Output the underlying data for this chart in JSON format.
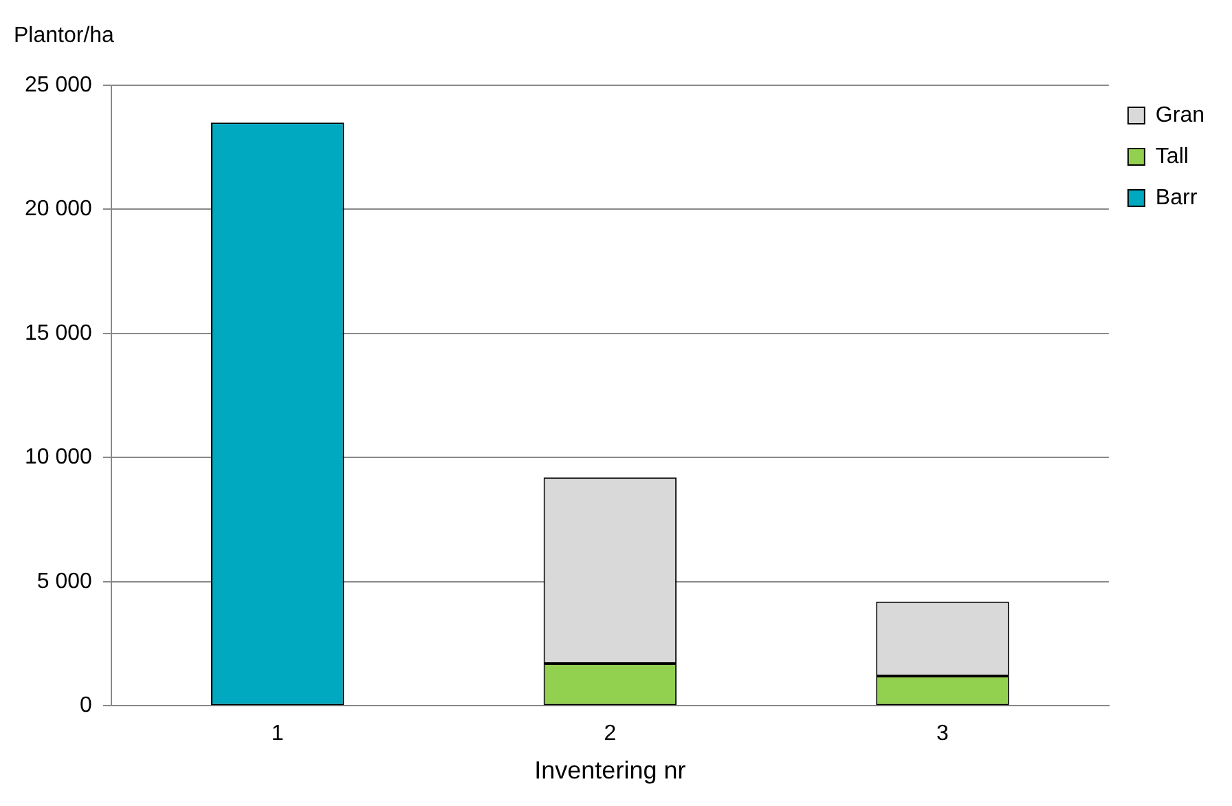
{
  "chart_data": {
    "type": "bar",
    "stacked": true,
    "ylabel": "Plantor/ha",
    "xlabel": "Inventering nr",
    "categories": [
      "1",
      "2",
      "3"
    ],
    "series": [
      {
        "name": "Barr",
        "color": "#00a9bf",
        "values": [
          23500,
          0,
          0
        ]
      },
      {
        "name": "Tall",
        "color": "#92d050",
        "values": [
          0,
          1700,
          1200
        ]
      },
      {
        "name": "Gran",
        "color": "#d9d9d9",
        "values": [
          0,
          7500,
          3000
        ]
      }
    ],
    "ylim": [
      0,
      25000
    ],
    "yticks": [
      0,
      {
        "value": 5000,
        "label": "5 000"
      },
      {
        "value": 10000,
        "label": "10 000"
      },
      {
        "value": 15000,
        "label": "15 000"
      },
      {
        "value": 20000,
        "label": "20 000"
      },
      {
        "value": 25000,
        "label": "25 000"
      }
    ],
    "grid": "y",
    "legend": "right"
  }
}
